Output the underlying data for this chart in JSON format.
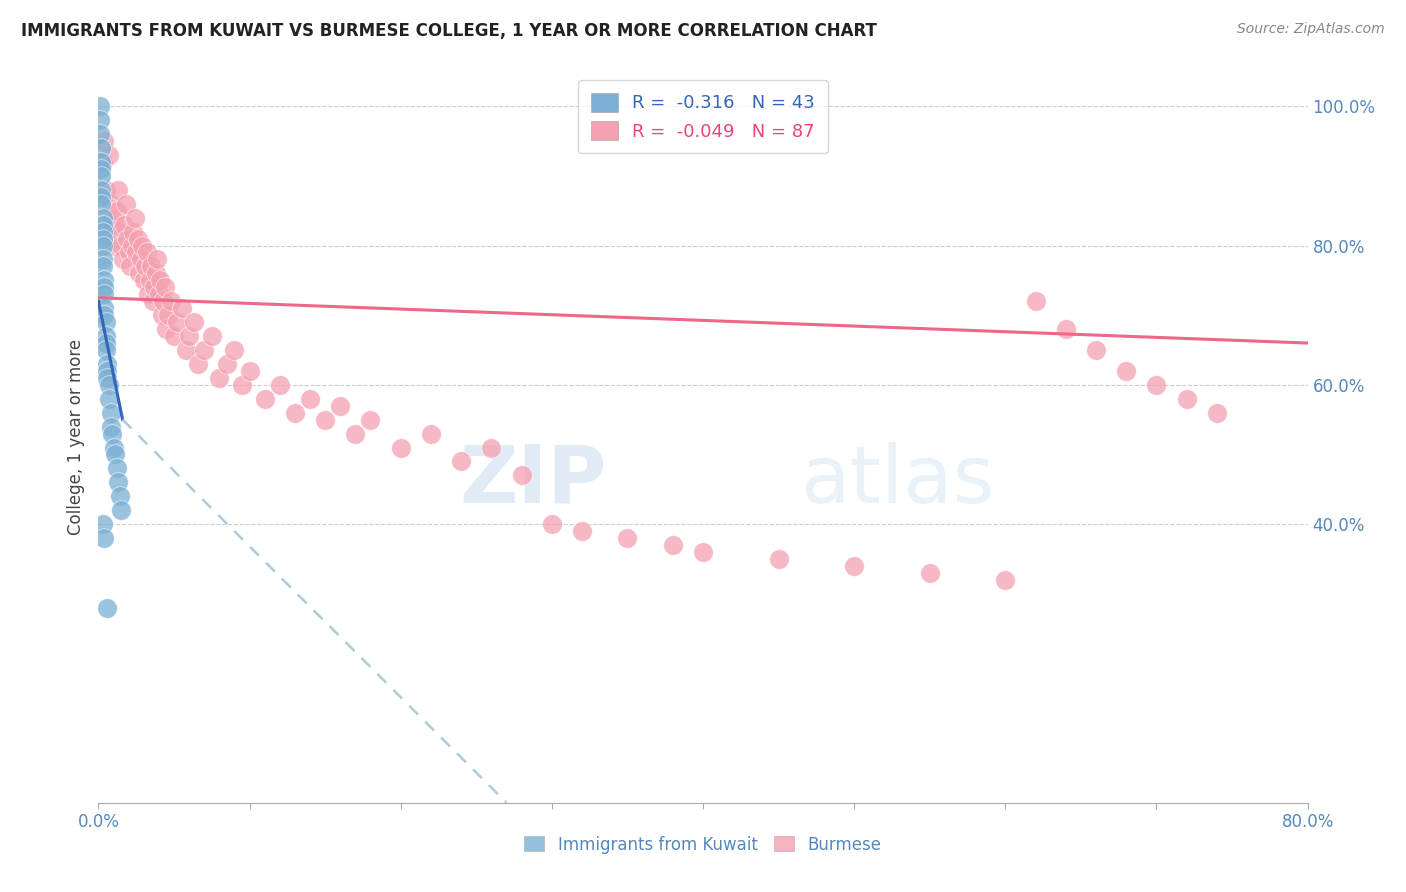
{
  "title": "IMMIGRANTS FROM KUWAIT VS BURMESE COLLEGE, 1 YEAR OR MORE CORRELATION CHART",
  "source": "Source: ZipAtlas.com",
  "ylabel": "College, 1 year or more",
  "color_kuwait": "#7BAFD4",
  "color_burmese": "#F4A0B0",
  "color_trendline_kuwait": "#3366BB",
  "color_trendline_burmese": "#EE6688",
  "color_trendline_kuwait_ext": "#AACCDD",
  "watermark_zip": "ZIP",
  "watermark_atlas": "atlas",
  "xlim": [
    0.0,
    0.8
  ],
  "ylim": [
    0.0,
    1.05
  ],
  "kuwait_x": [
    0.001,
    0.001,
    0.001,
    0.002,
    0.002,
    0.002,
    0.002,
    0.002,
    0.002,
    0.002,
    0.003,
    0.003,
    0.003,
    0.003,
    0.003,
    0.003,
    0.003,
    0.004,
    0.004,
    0.004,
    0.004,
    0.004,
    0.005,
    0.005,
    0.005,
    0.005,
    0.006,
    0.006,
    0.006,
    0.007,
    0.007,
    0.008,
    0.008,
    0.009,
    0.01,
    0.011,
    0.012,
    0.013,
    0.014,
    0.015,
    0.003,
    0.004,
    0.006
  ],
  "kuwait_y": [
    1.0,
    0.98,
    0.96,
    0.94,
    0.92,
    0.91,
    0.9,
    0.88,
    0.87,
    0.86,
    0.84,
    0.83,
    0.82,
    0.81,
    0.8,
    0.78,
    0.77,
    0.75,
    0.74,
    0.73,
    0.71,
    0.7,
    0.69,
    0.67,
    0.66,
    0.65,
    0.63,
    0.62,
    0.61,
    0.6,
    0.58,
    0.56,
    0.54,
    0.53,
    0.51,
    0.5,
    0.48,
    0.46,
    0.44,
    0.42,
    0.4,
    0.38,
    0.28
  ],
  "burmese_x": [
    0.003,
    0.004,
    0.005,
    0.007,
    0.008,
    0.009,
    0.01,
    0.011,
    0.012,
    0.013,
    0.014,
    0.015,
    0.016,
    0.017,
    0.018,
    0.019,
    0.02,
    0.021,
    0.022,
    0.023,
    0.024,
    0.025,
    0.026,
    0.027,
    0.028,
    0.029,
    0.03,
    0.031,
    0.032,
    0.033,
    0.034,
    0.035,
    0.036,
    0.037,
    0.038,
    0.039,
    0.04,
    0.041,
    0.042,
    0.043,
    0.044,
    0.045,
    0.046,
    0.048,
    0.05,
    0.052,
    0.055,
    0.058,
    0.06,
    0.063,
    0.066,
    0.07,
    0.075,
    0.08,
    0.085,
    0.09,
    0.095,
    0.1,
    0.11,
    0.12,
    0.13,
    0.14,
    0.15,
    0.16,
    0.17,
    0.18,
    0.2,
    0.22,
    0.24,
    0.26,
    0.28,
    0.3,
    0.32,
    0.35,
    0.38,
    0.4,
    0.45,
    0.5,
    0.55,
    0.6,
    0.62,
    0.64,
    0.66,
    0.68,
    0.7,
    0.72,
    0.74
  ],
  "burmese_y": [
    0.92,
    0.95,
    0.88,
    0.93,
    0.86,
    0.84,
    0.8,
    0.83,
    0.85,
    0.88,
    0.82,
    0.8,
    0.78,
    0.83,
    0.86,
    0.81,
    0.79,
    0.77,
    0.8,
    0.82,
    0.84,
    0.79,
    0.81,
    0.76,
    0.78,
    0.8,
    0.75,
    0.77,
    0.79,
    0.73,
    0.75,
    0.77,
    0.72,
    0.74,
    0.76,
    0.78,
    0.73,
    0.75,
    0.7,
    0.72,
    0.74,
    0.68,
    0.7,
    0.72,
    0.67,
    0.69,
    0.71,
    0.65,
    0.67,
    0.69,
    0.63,
    0.65,
    0.67,
    0.61,
    0.63,
    0.65,
    0.6,
    0.62,
    0.58,
    0.6,
    0.56,
    0.58,
    0.55,
    0.57,
    0.53,
    0.55,
    0.51,
    0.53,
    0.49,
    0.51,
    0.47,
    0.4,
    0.39,
    0.38,
    0.37,
    0.36,
    0.35,
    0.34,
    0.33,
    0.32,
    0.72,
    0.68,
    0.65,
    0.62,
    0.6,
    0.58,
    0.56
  ],
  "trendline_kuwait_x0": 0.0,
  "trendline_kuwait_y0": 0.72,
  "trendline_kuwait_x1": 0.016,
  "trendline_kuwait_y1": 0.55,
  "trendline_kuwait_ext_x0": 0.016,
  "trendline_kuwait_ext_y0": 0.55,
  "trendline_kuwait_ext_x1": 0.27,
  "trendline_kuwait_ext_y1": 0.0,
  "trendline_burmese_x0": 0.0,
  "trendline_burmese_y0": 0.725,
  "trendline_burmese_x1": 0.8,
  "trendline_burmese_y1": 0.66
}
